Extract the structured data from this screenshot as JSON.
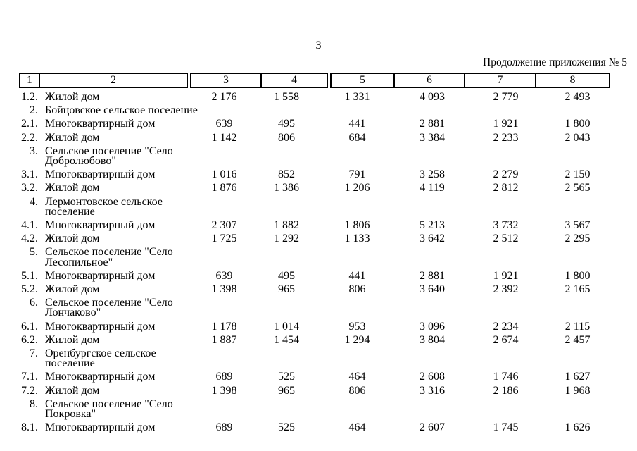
{
  "page": {
    "number": "3",
    "continuation_label": "Продолжение приложения № 5"
  },
  "table": {
    "column_numbers": [
      "1",
      "2",
      "3",
      "4",
      "5",
      "6",
      "7",
      "8"
    ],
    "rows": [
      {
        "num": "1.2.",
        "name": "Жилой дом",
        "values": [
          "2 176",
          "1 558",
          "1 331",
          "4 093",
          "2 779",
          "2 493"
        ]
      },
      {
        "num": "2.",
        "name": "Бойцовское сельское поселение",
        "values": [
          "",
          "",
          "",
          "",
          "",
          ""
        ]
      },
      {
        "num": "2.1.",
        "name": "Многоквартирный дом",
        "values": [
          "639",
          "495",
          "441",
          "2 881",
          "1 921",
          "1 800"
        ]
      },
      {
        "num": "2.2.",
        "name": "Жилой дом",
        "values": [
          "1 142",
          "806",
          "684",
          "3 384",
          "2 233",
          "2 043"
        ]
      },
      {
        "num": "3.",
        "name": "Сельское поселение \"Село\nДобролюбово\"",
        "values": [
          "",
          "",
          "",
          "",
          "",
          ""
        ]
      },
      {
        "num": "3.1.",
        "name": "Многоквартирный дом",
        "values": [
          "1 016",
          "852",
          "791",
          "3 258",
          "2 279",
          "2 150"
        ]
      },
      {
        "num": "3.2.",
        "name": "Жилой дом",
        "values": [
          "1 876",
          "1 386",
          "1 206",
          "4 119",
          "2 812",
          "2 565"
        ]
      },
      {
        "num": "4.",
        "name": "Лермонтовское сельское\nпоселение",
        "values": [
          "",
          "",
          "",
          "",
          "",
          ""
        ]
      },
      {
        "num": "4.1.",
        "name": "Многоквартирный дом",
        "values": [
          "2 307",
          "1 882",
          "1 806",
          "5 213",
          "3 732",
          "3 567"
        ]
      },
      {
        "num": "4.2.",
        "name": "Жилой дом",
        "values": [
          "1 725",
          "1 292",
          "1 133",
          "3 642",
          "2 512",
          "2 295"
        ]
      },
      {
        "num": "5.",
        "name": "Сельское поселение \"Село\nЛесопильное\"",
        "values": [
          "",
          "",
          "",
          "",
          "",
          ""
        ]
      },
      {
        "num": "5.1.",
        "name": "Многоквартирный дом",
        "values": [
          "639",
          "495",
          "441",
          "2 881",
          "1 921",
          "1 800"
        ]
      },
      {
        "num": "5.2.",
        "name": "Жилой дом",
        "values": [
          "1 398",
          "965",
          "806",
          "3 640",
          "2 392",
          "2 165"
        ]
      },
      {
        "num": "6.",
        "name": "Сельское поселение \"Село\nЛончаково\"",
        "values": [
          "",
          "",
          "",
          "",
          "",
          ""
        ]
      },
      {
        "num": "6.1.",
        "name": "Многоквартирный дом",
        "values": [
          "1 178",
          "1 014",
          "953",
          "3 096",
          "2 234",
          "2 115"
        ]
      },
      {
        "num": "6.2.",
        "name": "Жилой дом",
        "values": [
          "1 887",
          "1 454",
          "1 294",
          "3 804",
          "2 674",
          "2 457"
        ]
      },
      {
        "num": "7.",
        "name": "Оренбургское сельское\nпоселение",
        "values": [
          "",
          "",
          "",
          "",
          "",
          ""
        ]
      },
      {
        "num": "7.1.",
        "name": "Многоквартирный дом",
        "values": [
          "689",
          "525",
          "464",
          "2 608",
          "1 746",
          "1 627"
        ]
      },
      {
        "num": "7.2.",
        "name": "Жилой дом",
        "values": [
          "1 398",
          "965",
          "806",
          "3 316",
          "2 186",
          "1 968"
        ]
      },
      {
        "num": "8.",
        "name": "Сельское поселение \"Село\nПокровка\"",
        "values": [
          "",
          "",
          "",
          "",
          "",
          ""
        ]
      },
      {
        "num": "8.1.",
        "name": "Многоквартирный дом",
        "values": [
          "689",
          "525",
          "464",
          "2 607",
          "1 745",
          "1 626"
        ]
      }
    ]
  }
}
